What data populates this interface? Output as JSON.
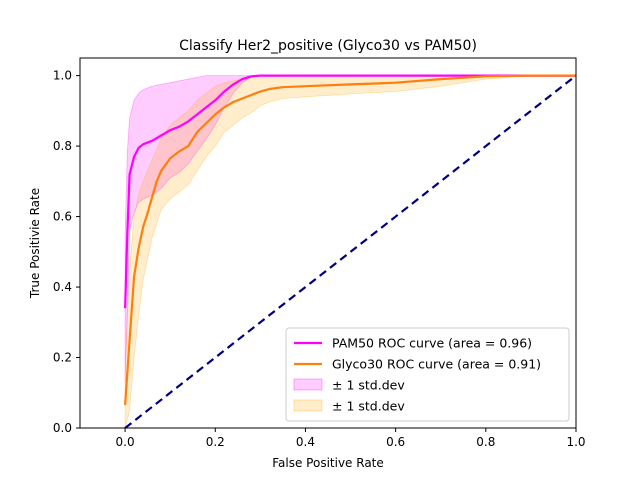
{
  "chart_data": {
    "type": "line",
    "title": "Classify Her2_positive (Glyco30 vs PAM50)",
    "xlabel": "False Positive Rate",
    "ylabel": "True Positivie Rate",
    "xlim": [
      -0.1,
      1.0
    ],
    "ylim": [
      0.0,
      1.05
    ],
    "x_ticks": [
      "0.0",
      "0.2",
      "0.4",
      "0.6",
      "0.8",
      "1.0"
    ],
    "y_ticks": [
      "0.0",
      "0.2",
      "0.4",
      "0.6",
      "0.8",
      "1.0"
    ],
    "grid": false,
    "legend_position": "lower-right",
    "series": [
      {
        "name": "PAM50 ROC curve (area = 0.96)",
        "color": "#ff00ff",
        "x": [
          0.0,
          0.005,
          0.01,
          0.02,
          0.03,
          0.04,
          0.06,
          0.08,
          0.1,
          0.12,
          0.14,
          0.16,
          0.18,
          0.2,
          0.22,
          0.24,
          0.26,
          0.28,
          0.3,
          0.35,
          0.4,
          0.5,
          0.6,
          0.7,
          0.8,
          0.9,
          1.0
        ],
        "y": [
          0.34,
          0.55,
          0.72,
          0.77,
          0.795,
          0.805,
          0.815,
          0.83,
          0.845,
          0.855,
          0.87,
          0.89,
          0.91,
          0.93,
          0.955,
          0.975,
          0.99,
          0.998,
          1.0,
          1.0,
          1.0,
          1.0,
          1.0,
          1.0,
          1.0,
          1.0,
          1.0
        ],
        "std_upper": [
          0.55,
          0.78,
          0.88,
          0.93,
          0.95,
          0.96,
          0.97,
          0.975,
          0.98,
          0.985,
          0.99,
          0.995,
          1.0,
          1.0,
          1.0,
          1.0,
          1.0,
          1.0,
          1.0,
          1.0,
          1.0,
          1.0,
          1.0,
          1.0,
          1.0,
          1.0,
          1.0
        ],
        "std_lower": [
          0.13,
          0.32,
          0.56,
          0.61,
          0.64,
          0.65,
          0.66,
          0.68,
          0.71,
          0.725,
          0.75,
          0.785,
          0.82,
          0.86,
          0.91,
          0.95,
          0.98,
          0.996,
          1.0,
          1.0,
          1.0,
          1.0,
          1.0,
          1.0,
          1.0,
          1.0,
          1.0
        ]
      },
      {
        "name": "Glyco30 ROC curve (area = 0.91)",
        "color": "#ff7f0e",
        "x": [
          0.0,
          0.01,
          0.02,
          0.03,
          0.04,
          0.05,
          0.06,
          0.07,
          0.08,
          0.1,
          0.12,
          0.14,
          0.16,
          0.18,
          0.2,
          0.22,
          0.24,
          0.26,
          0.28,
          0.3,
          0.32,
          0.35,
          0.4,
          0.5,
          0.6,
          0.7,
          0.8,
          0.9,
          1.0
        ],
        "y": [
          0.065,
          0.25,
          0.43,
          0.51,
          0.57,
          0.61,
          0.655,
          0.7,
          0.73,
          0.765,
          0.785,
          0.8,
          0.84,
          0.865,
          0.89,
          0.91,
          0.925,
          0.935,
          0.945,
          0.955,
          0.962,
          0.967,
          0.97,
          0.975,
          0.98,
          0.99,
          0.998,
          1.0,
          1.0
        ],
        "std_upper": [
          0.17,
          0.45,
          0.6,
          0.66,
          0.7,
          0.73,
          0.76,
          0.79,
          0.82,
          0.86,
          0.88,
          0.9,
          0.93,
          0.95,
          0.97,
          0.98,
          0.985,
          0.99,
          0.993,
          0.995,
          0.997,
          0.998,
          1.0,
          1.0,
          1.0,
          1.0,
          1.0,
          1.0,
          1.0
        ],
        "std_lower": [
          0.0,
          0.05,
          0.2,
          0.32,
          0.42,
          0.48,
          0.54,
          0.58,
          0.62,
          0.65,
          0.67,
          0.69,
          0.73,
          0.77,
          0.8,
          0.84,
          0.86,
          0.88,
          0.895,
          0.915,
          0.925,
          0.935,
          0.94,
          0.948,
          0.955,
          0.97,
          0.99,
          1.0,
          1.0
        ]
      },
      {
        "name": "",
        "color": "#000080",
        "x": [
          0.0,
          1.0
        ],
        "y": [
          0.0,
          1.0
        ],
        "dashed": true
      }
    ],
    "bands": [
      {
        "name": "± 1 std.dev",
        "color": "#ff00ff",
        "of_series": 0
      },
      {
        "name": "± 1 std.dev",
        "color": "#ffa500",
        "of_series": 1
      }
    ]
  }
}
